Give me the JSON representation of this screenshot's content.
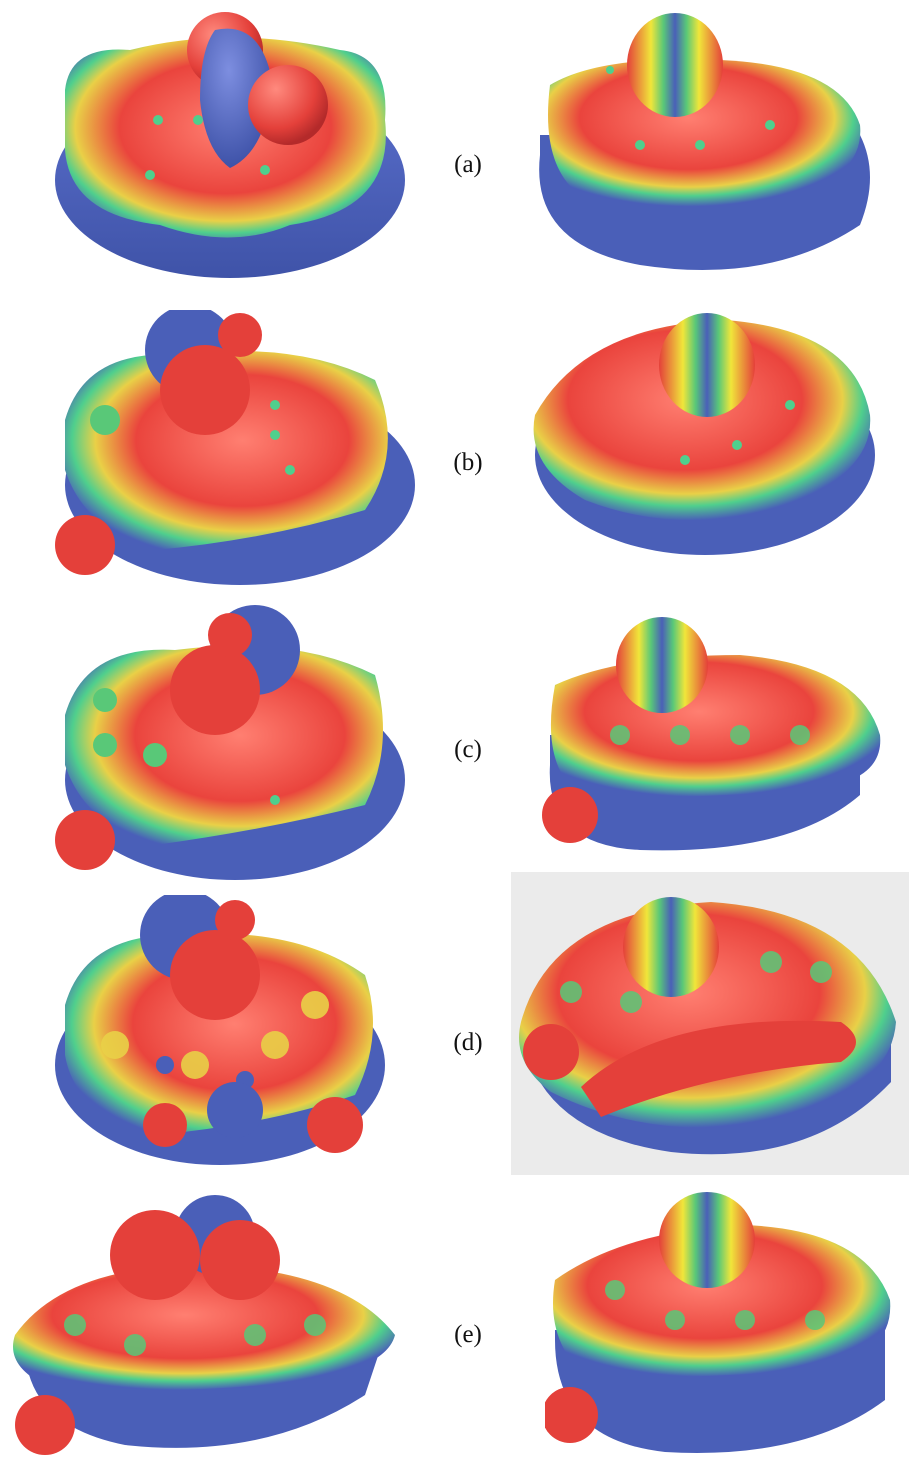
{
  "figure": {
    "panels": [
      {
        "label": "(a)"
      },
      {
        "label": "(b)"
      },
      {
        "label": "(c)"
      },
      {
        "label": "(d)"
      },
      {
        "label": "(e)"
      }
    ]
  },
  "colors": {
    "negative": "#4a5fb8",
    "positive": "#e53a36",
    "neutral": "#f0e63a",
    "mid": "#59c878",
    "background_highlight": "#ebebeb"
  }
}
